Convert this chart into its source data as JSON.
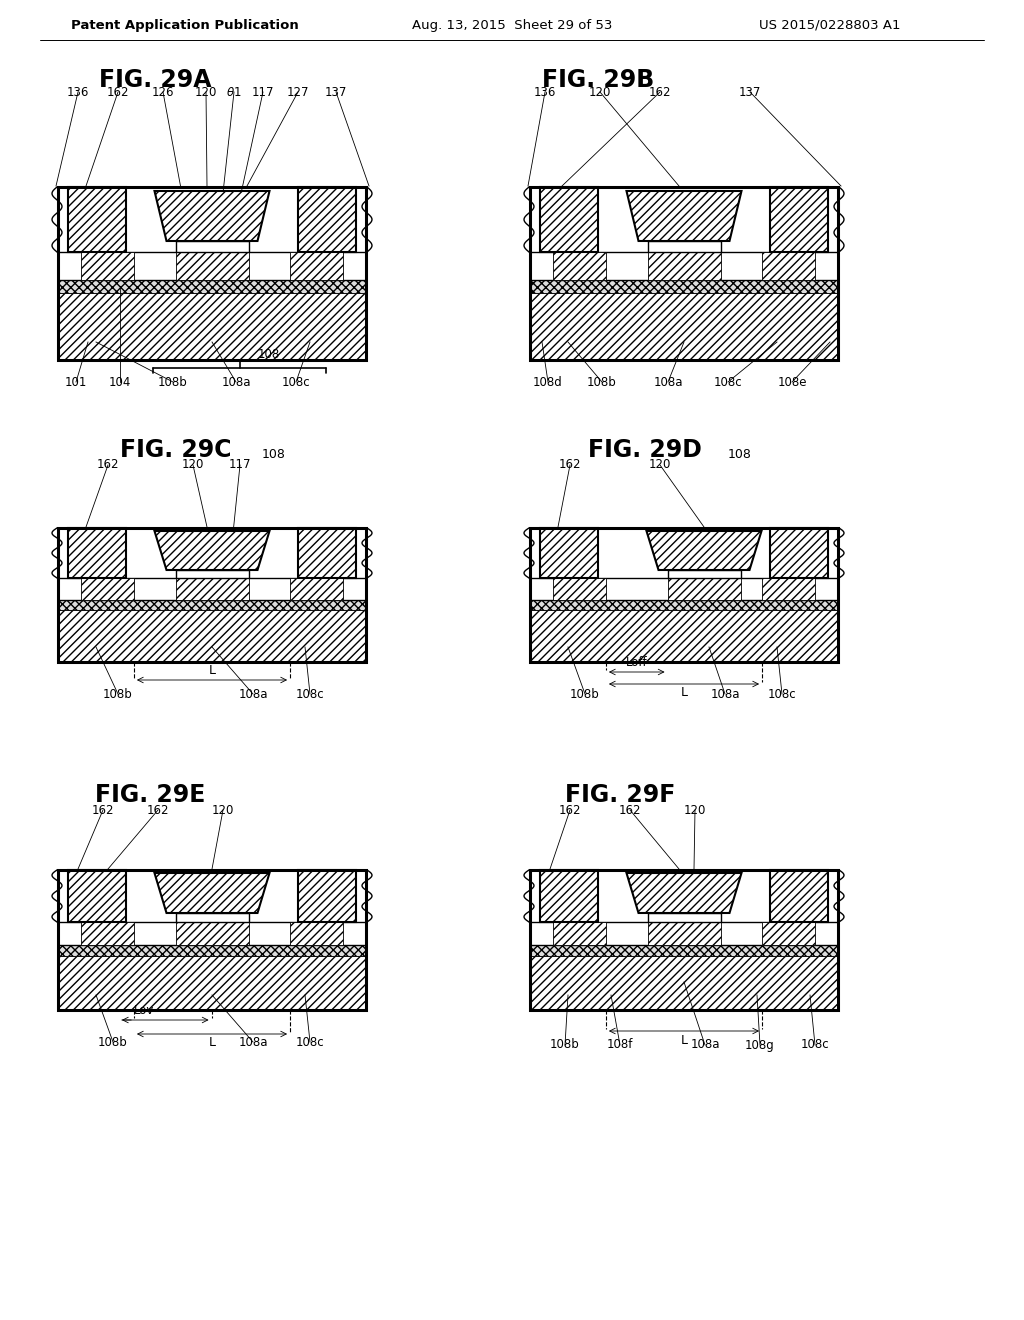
{
  "header_left": "Patent Application Publication",
  "header_mid": "Aug. 13, 2015  Sheet 29 of 53",
  "header_right": "US 2015/0228803 A1",
  "bg_color": "#ffffff",
  "line_color": "#000000"
}
